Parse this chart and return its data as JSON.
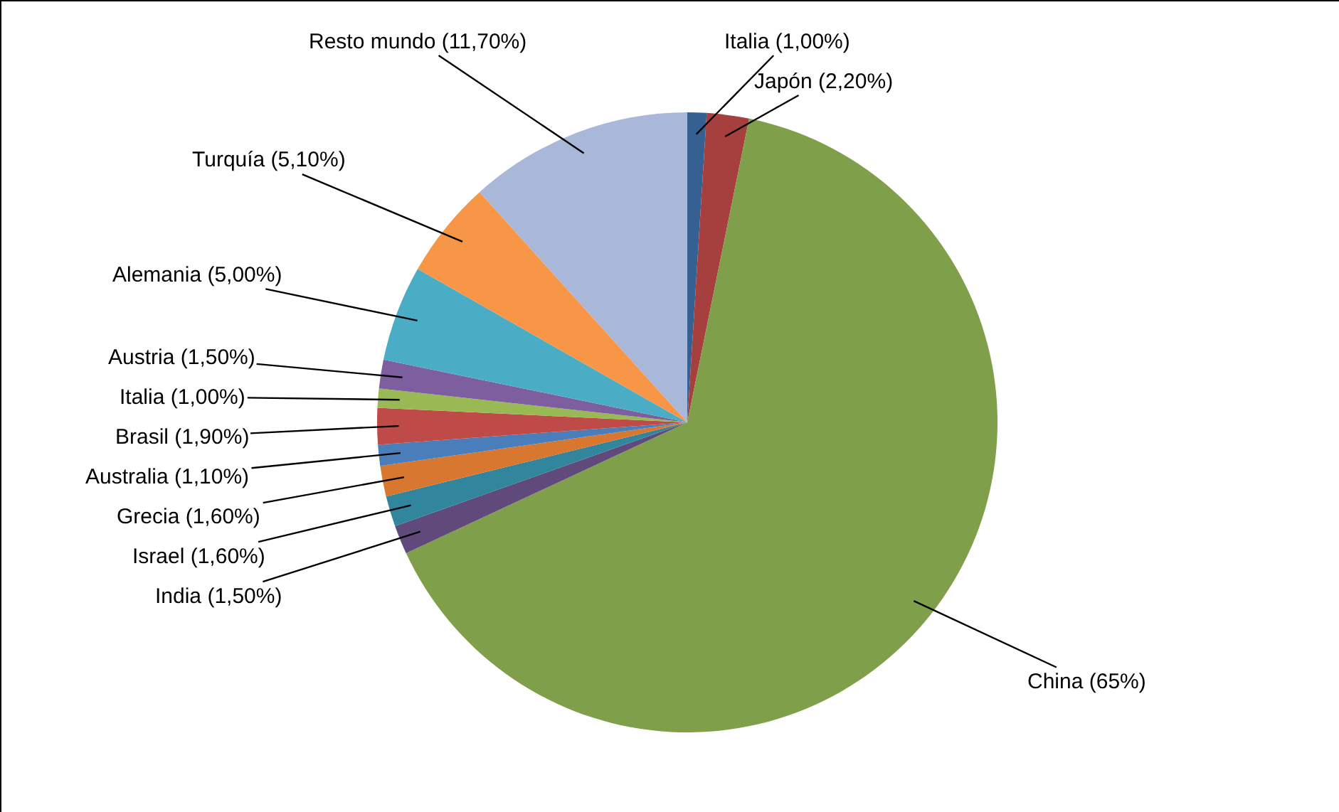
{
  "chart_data": {
    "type": "pie",
    "categories": [
      "Italia (1,00%)",
      "Japón (2,20%)",
      "China (65%)",
      "India (1,50%)",
      "Israel (1,60%)",
      "Grecia (1,60%)",
      "Australia (1,10%)",
      "Brasil (1,90%)",
      "Italia (1,00%)",
      "Austria (1,50%)",
      "Alemania (5,00%)",
      "Turquía (5,10%)",
      "Resto mundo (11,70%)"
    ],
    "values": [
      1.0,
      2.2,
      65,
      1.5,
      1.6,
      1.6,
      1.1,
      1.9,
      1.0,
      1.5,
      5.0,
      5.1,
      11.7
    ],
    "colors": [
      "#376092",
      "#a5403e",
      "#809f4a",
      "#604a7b",
      "#31859c",
      "#d8772f",
      "#4a7ebb",
      "#be4b48",
      "#98b954",
      "#7d5fa0",
      "#4bacc6",
      "#f79646",
      "#a9b8d8"
    ],
    "legend": false
  }
}
